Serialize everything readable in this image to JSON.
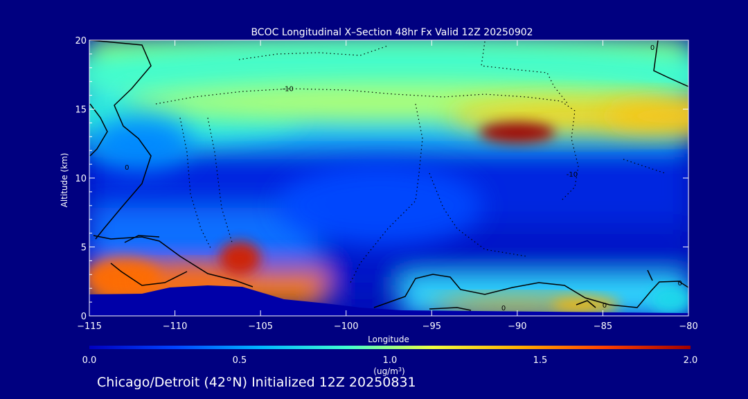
{
  "chart_data": {
    "type": "heatmap",
    "title": "BCOC Longitudinal X–Section 48hr  Fx Valid 12Z 20250902",
    "xlabel": "Longitude",
    "ylabel": "Altitude (km)",
    "xlim": [
      -115,
      -80
    ],
    "ylim": [
      0,
      20
    ],
    "x_ticks": [
      -115,
      -110,
      -105,
      -100,
      -95,
      -90,
      -85,
      -80
    ],
    "y_ticks": [
      0,
      5,
      10,
      15,
      20
    ],
    "colorbar": {
      "label_main": "(ug/m",
      "label_sup": "3",
      "label_end": ")",
      "range": [
        0.0,
        2.0
      ],
      "ticks": [
        "0.0",
        "0.5",
        "1.0",
        "1.5",
        "2.0"
      ],
      "colors": [
        "#0000c0",
        "#0044ff",
        "#00b8ff",
        "#40ffd0",
        "#f0ff40",
        "#ffb000",
        "#ff4000",
        "#a00000"
      ]
    },
    "contour_labels": [
      {
        "text": "-10",
        "lon": -103.4,
        "alt": 16.3
      },
      {
        "text": "-10",
        "lon": -86.8,
        "alt": 10.1
      },
      {
        "text": "0",
        "lon": -82.1,
        "alt": 19.3
      },
      {
        "text": "0",
        "lon": -112.8,
        "alt": 10.6
      },
      {
        "text": "0",
        "lon": -90.8,
        "alt": 0.4
      },
      {
        "text": "0",
        "lon": -84.9,
        "alt": 0.6
      },
      {
        "text": "0",
        "lon": -80.5,
        "alt": 2.2
      }
    ],
    "fields": [
      {
        "lon": -111.5,
        "alt": 14.5,
        "rx": 9,
        "ry": 1.8,
        "value": 0.8
      },
      {
        "lon": -97,
        "alt": 17.5,
        "rx": 22,
        "ry": 2.5,
        "value": 0.85
      },
      {
        "lon": -97,
        "alt": 15.5,
        "rx": 16,
        "ry": 1.4,
        "value": 1.05
      },
      {
        "lon": -86,
        "alt": 14.5,
        "rx": 8,
        "ry": 1.3,
        "value": 1.3
      },
      {
        "lon": -81,
        "alt": 14.5,
        "rx": 4,
        "ry": 1.2,
        "value": 1.35
      },
      {
        "lon": -90,
        "alt": 13.3,
        "rx": 2.2,
        "ry": 0.75,
        "value": 2.0
      },
      {
        "lon": -112,
        "alt": 12.5,
        "rx": 3,
        "ry": 2,
        "value": 0.45
      },
      {
        "lon": -98,
        "alt": 8,
        "rx": 6,
        "ry": 3,
        "value": 0.3
      },
      {
        "lon": -113,
        "alt": 2.8,
        "rx": 2.2,
        "ry": 1.4,
        "value": 1.6
      },
      {
        "lon": -109,
        "alt": 2.6,
        "rx": 3.5,
        "ry": 0.9,
        "value": 1.6
      },
      {
        "lon": -106.2,
        "alt": 4.2,
        "rx": 1.2,
        "ry": 1.2,
        "value": 1.85
      },
      {
        "lon": -90,
        "alt": 0.7,
        "rx": 5,
        "ry": 0.6,
        "value": 1.45
      },
      {
        "lon": -86,
        "alt": 0.8,
        "rx": 2,
        "ry": 0.5,
        "value": 1.4
      },
      {
        "lon": -81,
        "alt": 1.2,
        "rx": 1.2,
        "ry": 1,
        "value": 0.7
      }
    ]
  },
  "footer": {
    "text": "Chicago/Detroit (42°N) Initialized 12Z 20250831"
  }
}
